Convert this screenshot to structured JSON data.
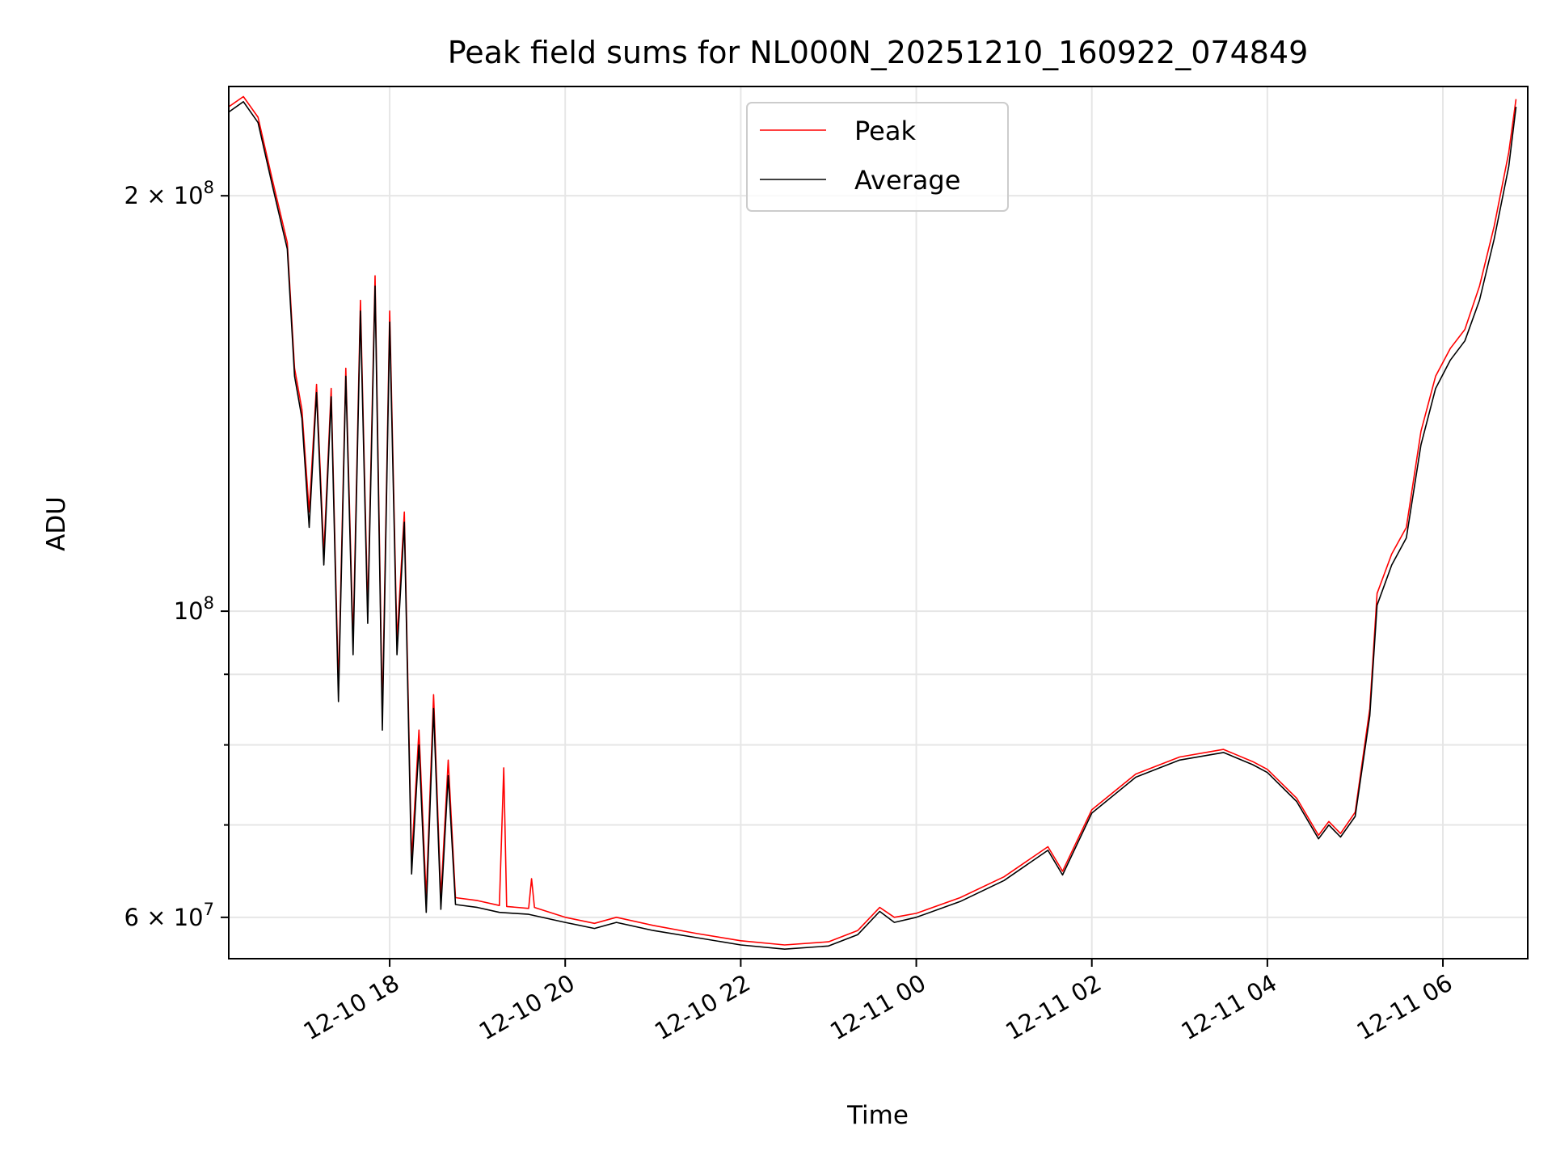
{
  "chart_data": {
    "type": "line",
    "title": "Peak field sums for NL000N_20251210_160922_074849",
    "xlabel": "Time",
    "ylabel": "ADU",
    "yscale": "log",
    "ylim": [
      56000000,
      240000000
    ],
    "xlim": [
      "2025-12-10 16:10",
      "2025-12-11 06:58"
    ],
    "grid": true,
    "legend_placement": "top-center",
    "x_ticks": [
      {
        "t": "2025-12-10 18:00",
        "label": "12-10 18"
      },
      {
        "t": "2025-12-10 20:00",
        "label": "12-10 20"
      },
      {
        "t": "2025-12-10 22:00",
        "label": "12-10 22"
      },
      {
        "t": "2025-12-11 00:00",
        "label": "12-11 00"
      },
      {
        "t": "2025-12-11 02:00",
        "label": "12-11 02"
      },
      {
        "t": "2025-12-11 04:00",
        "label": "12-11 04"
      },
      {
        "t": "2025-12-11 06:00",
        "label": "12-11 06"
      }
    ],
    "y_major_ticks": [
      {
        "v": 60000000,
        "mantissa": "6",
        "exp": "7"
      },
      {
        "v": 100000000,
        "mantissa": "",
        "exp": "8"
      },
      {
        "v": 200000000,
        "mantissa": "2",
        "exp": "8"
      }
    ],
    "y_minor_ticks": [
      70000000,
      80000000,
      90000000
    ],
    "series": [
      {
        "name": "Peak",
        "color": "#ff0000",
        "points": [
          [
            "2025-12-10 16:10",
            232000000
          ],
          [
            "2025-12-10 16:20",
            236000000
          ],
          [
            "2025-12-10 16:30",
            228000000
          ],
          [
            "2025-12-10 16:40",
            205000000
          ],
          [
            "2025-12-10 16:50",
            185000000
          ],
          [
            "2025-12-10 16:55",
            150000000
          ],
          [
            "2025-12-10 17:00",
            140000000
          ],
          [
            "2025-12-10 17:05",
            118000000
          ],
          [
            "2025-12-10 17:10",
            146000000
          ],
          [
            "2025-12-10 17:15",
            110000000
          ],
          [
            "2025-12-10 17:20",
            145000000
          ],
          [
            "2025-12-10 17:25",
            88000000
          ],
          [
            "2025-12-10 17:30",
            150000000
          ],
          [
            "2025-12-10 17:35",
            95000000
          ],
          [
            "2025-12-10 17:40",
            168000000
          ],
          [
            "2025-12-10 17:45",
            100000000
          ],
          [
            "2025-12-10 17:50",
            175000000
          ],
          [
            "2025-12-10 17:55",
            84000000
          ],
          [
            "2025-12-10 18:00",
            165000000
          ],
          [
            "2025-12-10 18:05",
            95000000
          ],
          [
            "2025-12-10 18:10",
            118000000
          ],
          [
            "2025-12-10 18:15",
            66000000
          ],
          [
            "2025-12-10 18:20",
            82000000
          ],
          [
            "2025-12-10 18:25",
            62000000
          ],
          [
            "2025-12-10 18:30",
            87000000
          ],
          [
            "2025-12-10 18:35",
            62000000
          ],
          [
            "2025-12-10 18:40",
            78000000
          ],
          [
            "2025-12-10 18:45",
            62000000
          ],
          [
            "2025-12-10 19:00",
            61700000
          ],
          [
            "2025-12-10 19:15",
            61200000
          ],
          [
            "2025-12-10 19:18",
            77000000
          ],
          [
            "2025-12-10 19:20",
            61100000
          ],
          [
            "2025-12-10 19:35",
            60900000
          ],
          [
            "2025-12-10 19:37",
            64000000
          ],
          [
            "2025-12-10 19:39",
            61000000
          ],
          [
            "2025-12-10 20:00",
            60000000
          ],
          [
            "2025-12-10 20:20",
            59400000
          ],
          [
            "2025-12-10 20:35",
            60000000
          ],
          [
            "2025-12-10 21:00",
            59200000
          ],
          [
            "2025-12-10 21:30",
            58400000
          ],
          [
            "2025-12-10 22:00",
            57700000
          ],
          [
            "2025-12-10 22:30",
            57300000
          ],
          [
            "2025-12-10 23:00",
            57600000
          ],
          [
            "2025-12-10 23:20",
            58700000
          ],
          [
            "2025-12-10 23:35",
            61000000
          ],
          [
            "2025-12-10 23:45",
            60000000
          ],
          [
            "2025-12-11 00:00",
            60400000
          ],
          [
            "2025-12-11 00:30",
            62000000
          ],
          [
            "2025-12-11 01:00",
            64200000
          ],
          [
            "2025-12-11 01:30",
            67500000
          ],
          [
            "2025-12-11 01:40",
            64800000
          ],
          [
            "2025-12-11 02:00",
            71800000
          ],
          [
            "2025-12-11 02:30",
            76200000
          ],
          [
            "2025-12-11 03:00",
            78400000
          ],
          [
            "2025-12-11 03:30",
            79400000
          ],
          [
            "2025-12-11 03:50",
            77800000
          ],
          [
            "2025-12-11 04:00",
            76800000
          ],
          [
            "2025-12-11 04:20",
            73200000
          ],
          [
            "2025-12-11 04:35",
            68800000
          ],
          [
            "2025-12-11 04:42",
            70400000
          ],
          [
            "2025-12-11 04:50",
            69000000
          ],
          [
            "2025-12-11 05:00",
            71500000
          ],
          [
            "2025-12-11 05:10",
            85000000
          ],
          [
            "2025-12-11 05:15",
            103000000
          ],
          [
            "2025-12-11 05:25",
            110000000
          ],
          [
            "2025-12-11 05:35",
            115000000
          ],
          [
            "2025-12-11 05:45",
            135000000
          ],
          [
            "2025-12-11 05:55",
            148000000
          ],
          [
            "2025-12-11 06:05",
            155000000
          ],
          [
            "2025-12-11 06:15",
            160000000
          ],
          [
            "2025-12-11 06:25",
            172000000
          ],
          [
            "2025-12-11 06:35",
            190000000
          ],
          [
            "2025-12-11 06:45",
            215000000
          ],
          [
            "2025-12-11 06:50",
            235000000
          ]
        ]
      },
      {
        "name": "Average",
        "color": "#000000",
        "points": [
          [
            "2025-12-10 16:10",
            230000000
          ],
          [
            "2025-12-10 16:20",
            234000000
          ],
          [
            "2025-12-10 16:30",
            226000000
          ],
          [
            "2025-12-10 16:40",
            203000000
          ],
          [
            "2025-12-10 16:50",
            183000000
          ],
          [
            "2025-12-10 16:55",
            148000000
          ],
          [
            "2025-12-10 17:00",
            138000000
          ],
          [
            "2025-12-10 17:05",
            115000000
          ],
          [
            "2025-12-10 17:10",
            144000000
          ],
          [
            "2025-12-10 17:15",
            108000000
          ],
          [
            "2025-12-10 17:20",
            143000000
          ],
          [
            "2025-12-10 17:25",
            86000000
          ],
          [
            "2025-12-10 17:30",
            148000000
          ],
          [
            "2025-12-10 17:35",
            93000000
          ],
          [
            "2025-12-10 17:40",
            165000000
          ],
          [
            "2025-12-10 17:45",
            98000000
          ],
          [
            "2025-12-10 17:50",
            172000000
          ],
          [
            "2025-12-10 17:55",
            82000000
          ],
          [
            "2025-12-10 18:00",
            162000000
          ],
          [
            "2025-12-10 18:05",
            93000000
          ],
          [
            "2025-12-10 18:10",
            116000000
          ],
          [
            "2025-12-10 18:15",
            64500000
          ],
          [
            "2025-12-10 18:20",
            80000000
          ],
          [
            "2025-12-10 18:25",
            60500000
          ],
          [
            "2025-12-10 18:30",
            85000000
          ],
          [
            "2025-12-10 18:35",
            60800000
          ],
          [
            "2025-12-10 18:40",
            76000000
          ],
          [
            "2025-12-10 18:45",
            61300000
          ],
          [
            "2025-12-10 19:00",
            61000000
          ],
          [
            "2025-12-10 19:15",
            60500000
          ],
          [
            "2025-12-10 19:35",
            60300000
          ],
          [
            "2025-12-10 20:00",
            59500000
          ],
          [
            "2025-12-10 20:20",
            58900000
          ],
          [
            "2025-12-10 20:35",
            59500000
          ],
          [
            "2025-12-10 21:00",
            58700000
          ],
          [
            "2025-12-10 21:30",
            58000000
          ],
          [
            "2025-12-10 22:00",
            57300000
          ],
          [
            "2025-12-10 22:30",
            56900000
          ],
          [
            "2025-12-10 23:00",
            57200000
          ],
          [
            "2025-12-10 23:20",
            58300000
          ],
          [
            "2025-12-10 23:35",
            60600000
          ],
          [
            "2025-12-10 23:45",
            59500000
          ],
          [
            "2025-12-11 00:00",
            60000000
          ],
          [
            "2025-12-11 00:30",
            61600000
          ],
          [
            "2025-12-11 01:00",
            63800000
          ],
          [
            "2025-12-11 01:30",
            67100000
          ],
          [
            "2025-12-11 01:40",
            64400000
          ],
          [
            "2025-12-11 02:00",
            71400000
          ],
          [
            "2025-12-11 02:30",
            75800000
          ],
          [
            "2025-12-11 03:00",
            78000000
          ],
          [
            "2025-12-11 03:30",
            79000000
          ],
          [
            "2025-12-11 03:50",
            77400000
          ],
          [
            "2025-12-11 04:00",
            76400000
          ],
          [
            "2025-12-11 04:20",
            72800000
          ],
          [
            "2025-12-11 04:35",
            68400000
          ],
          [
            "2025-12-11 04:42",
            70000000
          ],
          [
            "2025-12-11 04:50",
            68600000
          ],
          [
            "2025-12-11 05:00",
            71000000
          ],
          [
            "2025-12-11 05:10",
            84000000
          ],
          [
            "2025-12-11 05:15",
            101000000
          ],
          [
            "2025-12-11 05:25",
            108000000
          ],
          [
            "2025-12-11 05:35",
            113000000
          ],
          [
            "2025-12-11 05:45",
            132000000
          ],
          [
            "2025-12-11 05:55",
            145000000
          ],
          [
            "2025-12-11 06:05",
            152000000
          ],
          [
            "2025-12-11 06:15",
            157000000
          ],
          [
            "2025-12-11 06:25",
            168000000
          ],
          [
            "2025-12-11 06:35",
            186000000
          ],
          [
            "2025-12-11 06:45",
            210000000
          ],
          [
            "2025-12-11 06:50",
            232000000
          ]
        ]
      }
    ]
  }
}
